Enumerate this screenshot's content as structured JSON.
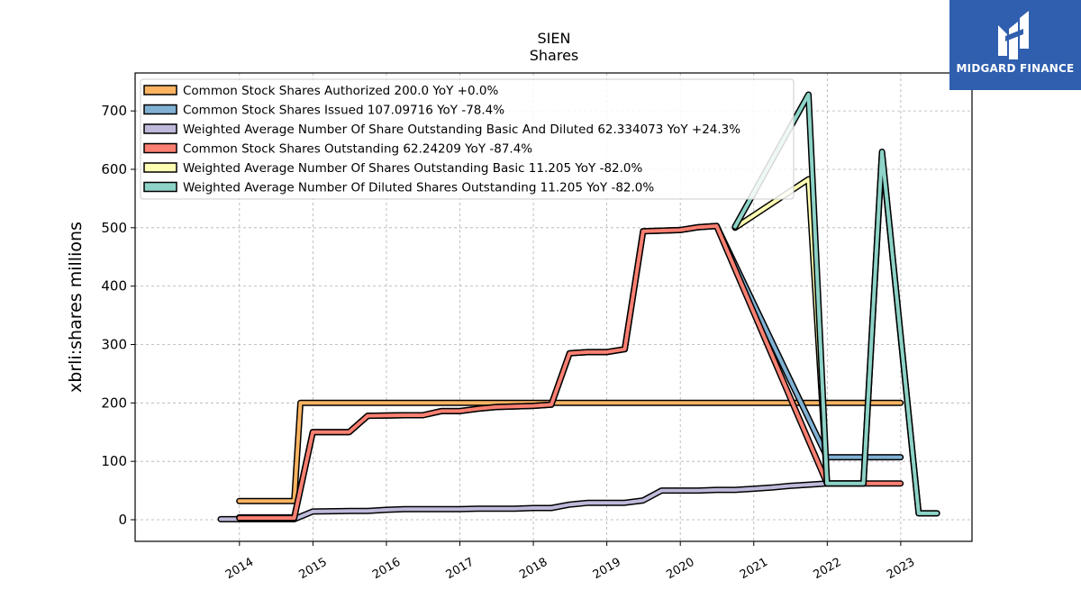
{
  "chart_data": {
    "type": "line",
    "title": "SIEN",
    "subtitle": "Shares",
    "ylabel": "xbrli:shares millions",
    "xlabel": "",
    "ylim": [
      -37,
      765
    ],
    "xlim": [
      2012.58,
      2023.97
    ],
    "yticks": [
      0,
      100,
      200,
      300,
      400,
      500,
      600,
      700
    ],
    "xticks": [
      "2014",
      "2015",
      "2016",
      "2017",
      "2018",
      "2019",
      "2020",
      "2021",
      "2022",
      "2023"
    ],
    "grid": true,
    "legend_position": "top-left",
    "series": [
      {
        "name": "Common Stock Shares Authorized  200.0 YoY +0.0%",
        "color": "#fdb462",
        "x": [
          "2013-12-31",
          "2014-09-30",
          "2014-10-31",
          "2015-12-31",
          "2017-12-31",
          "2018-03-31",
          "2019-06-30",
          "2020-06-30",
          "2021-06-30",
          "2021-12-31",
          "2022-12-31"
        ],
        "y": [
          32,
          32,
          200,
          200,
          200,
          200,
          200,
          200,
          200,
          200,
          200
        ]
      },
      {
        "name": "Common Stock Shares Issued  107.09716 YoY -78.4%",
        "color": "#80b1d3",
        "x": [
          "2013-12-31",
          "2014-09-30",
          "2014-12-31",
          "2015-06-30",
          "2015-09-30",
          "2016-03-31",
          "2016-06-30",
          "2016-09-30",
          "2016-12-31",
          "2017-03-31",
          "2017-06-30",
          "2017-09-30",
          "2017-12-31",
          "2018-03-31",
          "2018-06-30",
          "2018-09-30",
          "2018-12-31",
          "2019-03-31",
          "2019-06-30",
          "2019-12-31",
          "2020-03-31",
          "2020-06-30",
          "2021-12-31",
          "2022-12-31"
        ],
        "y": [
          4,
          4,
          150,
          150,
          178,
          179,
          179,
          186,
          186,
          190,
          193,
          194,
          195,
          197,
          285,
          287,
          287,
          292,
          494,
          496,
          501,
          503,
          107,
          107
        ]
      },
      {
        "name": "Weighted Average Number Of Share Outstanding Basic And Diluted  62.334073 YoY +24.3%",
        "color": "#bebada",
        "x": [
          "2013-09-30",
          "2014-09-30",
          "2014-12-31",
          "2015-06-30",
          "2015-09-30",
          "2015-12-31",
          "2016-03-31",
          "2016-06-30",
          "2016-09-30",
          "2016-12-31",
          "2017-03-31",
          "2017-06-30",
          "2017-09-30",
          "2017-12-31",
          "2018-03-31",
          "2018-06-30",
          "2018-09-30",
          "2018-12-31",
          "2019-03-31",
          "2019-06-30",
          "2019-09-30",
          "2019-12-31",
          "2020-03-31",
          "2020-06-30",
          "2020-09-30",
          "2020-12-31",
          "2021-03-31",
          "2021-06-30",
          "2021-09-30",
          "2021-12-31"
        ],
        "y": [
          1,
          1,
          14,
          15,
          15,
          17,
          18,
          18,
          18,
          18,
          19,
          19,
          19,
          20,
          20,
          26,
          29,
          29,
          29,
          33,
          50,
          50,
          50,
          51,
          51,
          53,
          55,
          58,
          60,
          62
        ]
      },
      {
        "name": "Common Stock Shares Outstanding  62.24209 YoY -87.4%",
        "color": "#fb8072",
        "x": [
          "2013-12-31",
          "2014-09-30",
          "2014-12-31",
          "2015-06-30",
          "2015-09-30",
          "2016-03-31",
          "2016-06-30",
          "2016-09-30",
          "2016-12-31",
          "2017-03-31",
          "2017-06-30",
          "2017-09-30",
          "2017-12-31",
          "2018-03-31",
          "2018-06-30",
          "2018-09-30",
          "2018-12-31",
          "2019-03-31",
          "2019-06-30",
          "2019-12-31",
          "2020-03-31",
          "2020-06-30",
          "2021-12-31",
          "2022-12-31"
        ],
        "y": [
          3,
          3,
          150,
          150,
          178,
          179,
          179,
          186,
          186,
          190,
          193,
          194,
          195,
          197,
          285,
          287,
          287,
          292,
          494,
          496,
          501,
          503,
          62,
          62
        ]
      },
      {
        "name": "Weighted Average Number Of Shares Outstanding Basic  11.205 YoY -82.0%",
        "color": "#ffffb3",
        "x": [
          "2020-09-30",
          "2021-09-30",
          "2021-12-31",
          "2022-03-31",
          "2022-06-30",
          "2022-09-30",
          "2023-03-31",
          "2023-06-30"
        ],
        "y": [
          500,
          583,
          62,
          62,
          62,
          628,
          11,
          11
        ]
      },
      {
        "name": "Weighted Average Number Of Diluted Shares Outstanding  11.205 YoY -82.0%",
        "color": "#8dd3c7",
        "x": [
          "2020-09-30",
          "2021-09-30",
          "2021-12-31",
          "2022-03-31",
          "2022-06-30",
          "2022-09-30",
          "2023-03-31",
          "2023-06-30"
        ],
        "y": [
          502,
          728,
          62,
          62,
          62,
          630,
          11,
          11
        ]
      }
    ]
  },
  "logo": {
    "text": "MIDGARD FINANCE"
  }
}
